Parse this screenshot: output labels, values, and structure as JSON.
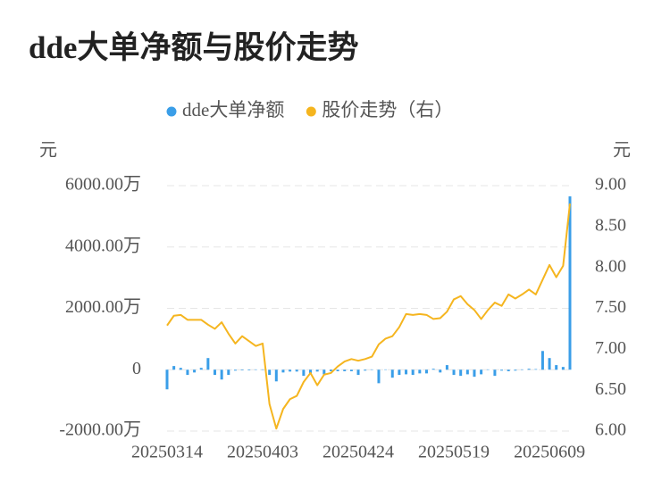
{
  "chart_data": {
    "type": "combo",
    "title": "dde大单净额与股价走势",
    "y_label": "元",
    "y2_label": "元",
    "categories": [
      "20250314",
      null,
      null,
      null,
      null,
      null,
      null,
      null,
      null,
      null,
      null,
      null,
      null,
      null,
      "20250403",
      null,
      null,
      null,
      null,
      null,
      null,
      null,
      null,
      null,
      null,
      null,
      null,
      null,
      "20250424",
      null,
      null,
      null,
      null,
      null,
      null,
      null,
      null,
      null,
      null,
      null,
      null,
      null,
      "20250519",
      null,
      null,
      null,
      null,
      null,
      null,
      null,
      null,
      null,
      null,
      null,
      null,
      null,
      "20250609",
      null,
      null,
      null
    ],
    "series": [
      {
        "name": "dde大单净额",
        "type": "bar",
        "color": "#3a9ee8",
        "values": [
          -640,
          120,
          60,
          -170,
          -90,
          60,
          380,
          -170,
          -320,
          -170,
          -30,
          -20,
          -20,
          10,
          10,
          -170,
          -380,
          -90,
          -60,
          -60,
          -200,
          -120,
          -60,
          -150,
          -50,
          -50,
          -50,
          -50,
          -170,
          -30,
          10,
          -440,
          10,
          -260,
          -170,
          -150,
          -170,
          -120,
          -120,
          30,
          -90,
          150,
          -170,
          -200,
          -150,
          -230,
          -150,
          10,
          -200,
          -30,
          -50,
          -30,
          10,
          30,
          20,
          610,
          380,
          150,
          90,
          5650
        ]
      },
      {
        "name": "股价走势（右）",
        "type": "line",
        "axis": "y2",
        "color": "#f5b51f",
        "values": [
          7.29,
          7.41,
          7.42,
          7.36,
          7.36,
          7.36,
          7.3,
          7.25,
          7.33,
          7.19,
          7.07,
          7.16,
          7.1,
          7.04,
          7.07,
          6.33,
          6.03,
          6.27,
          6.39,
          6.43,
          6.6,
          6.71,
          6.56,
          6.69,
          6.71,
          6.79,
          6.85,
          6.88,
          6.86,
          6.88,
          6.91,
          7.06,
          7.13,
          7.16,
          7.27,
          7.43,
          7.42,
          7.43,
          7.42,
          7.37,
          7.38,
          7.46,
          7.61,
          7.65,
          7.55,
          7.48,
          7.37,
          7.48,
          7.57,
          7.53,
          7.67,
          7.62,
          7.67,
          7.73,
          7.67,
          7.85,
          8.03,
          7.88,
          8.02,
          8.78
        ]
      }
    ],
    "ylim": [
      -2000,
      6000
    ],
    "yticks": [
      {
        "value": -2000,
        "label": "-2000.00万"
      },
      0,
      {
        "value": 2000,
        "label": "2000.00万"
      },
      {
        "value": 4000,
        "label": "4000.00万"
      },
      {
        "value": 6000,
        "label": "6000.00万"
      }
    ],
    "y2lim": [
      6,
      9
    ],
    "y2ticks": [
      {
        "value": 6,
        "label": "6.00"
      },
      {
        "value": 6.5,
        "label": "6.50"
      },
      {
        "value": 7,
        "label": "7.00"
      },
      {
        "value": 7.5,
        "label": "7.50"
      },
      {
        "value": 8,
        "label": "8.00"
      },
      {
        "value": 8.5,
        "label": "8.50"
      },
      {
        "value": 9,
        "label": "9.00"
      }
    ],
    "grid": true,
    "legend": "top"
  }
}
